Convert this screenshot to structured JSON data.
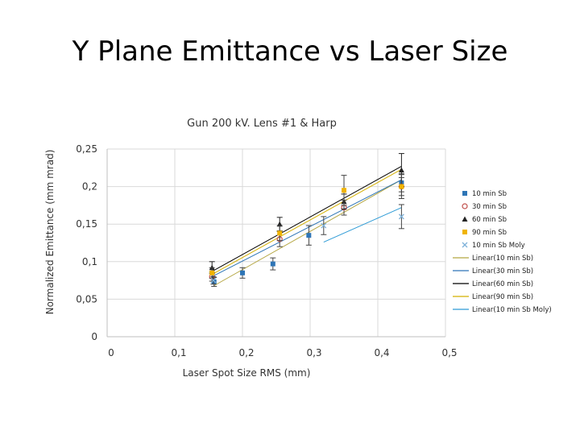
{
  "slide": {
    "title": "Y Plane Emittance vs Laser Size"
  },
  "chart_data": {
    "type": "scatter",
    "title": "Gun 200 kV. Lens #1 & Harp",
    "xlabel": "Laser Spot Size RMS (mm)",
    "ylabel": "Normalized Emittance (mm mrad)",
    "xlim": [
      0,
      0.5
    ],
    "ylim": [
      0,
      0.25
    ],
    "x_ticks": [
      "0",
      "0,1",
      "0,2",
      "0,3",
      "0,4",
      "0,5"
    ],
    "y_ticks": [
      "0",
      "0,05",
      "0,1",
      "0,15",
      "0,2",
      "0,25"
    ],
    "grid": true,
    "legend_position": "right",
    "series": [
      {
        "name": "10 min Sb",
        "color": "#2e75b6",
        "points": [
          [
            0.158,
            0.073
          ],
          [
            0.2,
            0.085
          ],
          [
            0.245,
            0.097
          ],
          [
            0.298,
            0.135
          ],
          [
            0.435,
            0.205
          ]
        ],
        "errors": [
          0.006,
          0.007,
          0.008,
          0.013,
          0.012
        ]
      },
      {
        "name": "30 min Sb",
        "color": "#c0504d",
        "points": [
          [
            0.155,
            0.08
          ],
          [
            0.255,
            0.13
          ],
          [
            0.35,
            0.172
          ],
          [
            0.435,
            0.2
          ]
        ],
        "errors": [
          0.006,
          0.01,
          0.01,
          0.012
        ]
      },
      {
        "name": "60 min Sb",
        "color": "#222222",
        "points": [
          [
            0.155,
            0.092
          ],
          [
            0.255,
            0.15
          ],
          [
            0.35,
            0.18
          ],
          [
            0.435,
            0.222
          ]
        ],
        "errors": [
          0.008,
          0.009,
          0.01,
          0.022
        ]
      },
      {
        "name": "90 min Sb",
        "color": "#f0b400",
        "points": [
          [
            0.155,
            0.085
          ],
          [
            0.255,
            0.138
          ],
          [
            0.35,
            0.195
          ],
          [
            0.435,
            0.2
          ]
        ],
        "errors": [
          0.007,
          0.01,
          0.02,
          0.016
        ]
      },
      {
        "name": "10 min Sb Moly",
        "color": "#7fb2d9",
        "points": [
          [
            0.157,
            0.075
          ],
          [
            0.32,
            0.148
          ],
          [
            0.435,
            0.16
          ]
        ],
        "errors": [
          0.005,
          0.012,
          0.016
        ]
      }
    ],
    "trendlines": [
      {
        "name": "Linear(10 min Sb)",
        "color": "#b5a642",
        "x": [
          0.158,
          0.435
        ],
        "y": [
          0.068,
          0.209
        ]
      },
      {
        "name": "Linear(30 min Sb)",
        "color": "#2e75b6",
        "x": [
          0.155,
          0.435
        ],
        "y": [
          0.08,
          0.209
        ]
      },
      {
        "name": "Linear(60 min Sb)",
        "color": "#000000",
        "x": [
          0.155,
          0.435
        ],
        "y": [
          0.087,
          0.227
        ]
      },
      {
        "name": "Linear(90 min Sb)",
        "color": "#d4b000",
        "x": [
          0.155,
          0.435
        ],
        "y": [
          0.083,
          0.223
        ]
      },
      {
        "name": "Linear(10 min Sb Moly)",
        "color": "#2e9bd6",
        "x": [
          0.32,
          0.435
        ],
        "y": [
          0.126,
          0.172
        ]
      }
    ]
  }
}
